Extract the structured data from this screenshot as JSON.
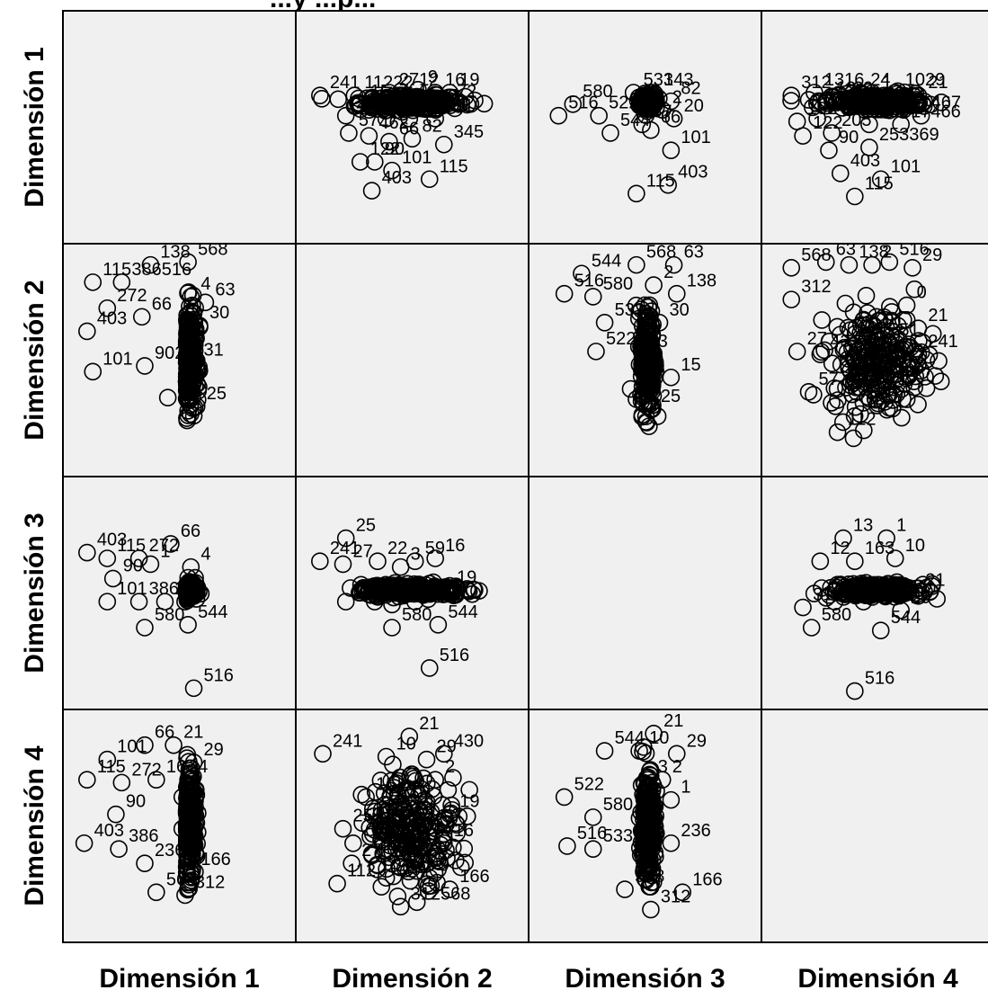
{
  "title_fragment": "...y ...p...",
  "chart_data": {
    "type": "scatter",
    "subtype": "scatterplot-matrix",
    "variables": [
      "Dimensión 1",
      "Dimensión 2",
      "Dimensión 3",
      "Dimensión 4"
    ],
    "panel_background": "#f0f0f0",
    "diagonal": "empty",
    "marker": "open-circle",
    "grid": false,
    "legend": "none",
    "panels": [
      {
        "row": 0,
        "col": 1,
        "label_points": [
          {
            "id": "241",
            "x": -3.2,
            "y": 1.1
          },
          {
            "id": "11222",
            "x": -2.0,
            "y": 1.1
          },
          {
            "id": "2712",
            "x": -0.8,
            "y": 1.2
          },
          {
            "id": "9",
            "x": 0.2,
            "y": 1.3
          },
          {
            "id": "16",
            "x": 0.8,
            "y": 1.2
          },
          {
            "id": "19",
            "x": 1.3,
            "y": 1.2
          },
          {
            "id": "15",
            "x": -1.8,
            "y": 0.8
          },
          {
            "id": "4",
            "x": -0.2,
            "y": 0.8
          },
          {
            "id": "72",
            "x": 1.2,
            "y": 0.8
          },
          {
            "id": "25",
            "x": -2.3,
            "y": 0.4
          },
          {
            "id": "3",
            "x": -0.9,
            "y": 0.3
          },
          {
            "id": "20",
            "x": -0.1,
            "y": 0.3
          },
          {
            "id": "411",
            "x": 0.8,
            "y": 0.3
          },
          {
            "id": "57",
            "x": -2.2,
            "y": -0.2
          },
          {
            "id": "462",
            "x": -1.5,
            "y": -0.3
          },
          {
            "id": "66",
            "x": -0.8,
            "y": -0.5
          },
          {
            "id": "82",
            "x": 0.0,
            "y": -0.4
          },
          {
            "id": "345",
            "x": 1.1,
            "y": -0.6
          },
          {
            "id": "122",
            "x": -1.8,
            "y": -1.2
          },
          {
            "id": "90",
            "x": -1.3,
            "y": -1.2
          },
          {
            "id": "101",
            "x": -0.7,
            "y": -1.5
          },
          {
            "id": "115",
            "x": 0.6,
            "y": -1.8
          },
          {
            "id": "403",
            "x": -1.4,
            "y": -2.2
          }
        ]
      },
      {
        "row": 0,
        "col": 2,
        "label_points": [
          {
            "id": "533",
            "x": -0.4,
            "y": 1.2
          },
          {
            "id": "143",
            "x": 0.3,
            "y": 1.2
          },
          {
            "id": "82",
            "x": 0.9,
            "y": 0.9
          },
          {
            "id": "580",
            "x": -2.5,
            "y": 0.8
          },
          {
            "id": "516",
            "x": -3.0,
            "y": 0.4
          },
          {
            "id": "522",
            "x": -1.6,
            "y": 0.4
          },
          {
            "id": "2",
            "x": 0.6,
            "y": 0.6
          },
          {
            "id": "57",
            "x": -0.1,
            "y": 0.1
          },
          {
            "id": "20",
            "x": 1.0,
            "y": 0.3
          },
          {
            "id": "544",
            "x": -1.2,
            "y": -0.2
          },
          {
            "id": "66",
            "x": 0.2,
            "y": -0.1
          },
          {
            "id": "101",
            "x": 0.9,
            "y": -0.8
          },
          {
            "id": "403",
            "x": 0.8,
            "y": -2.0
          },
          {
            "id": "115",
            "x": -0.3,
            "y": -2.3
          }
        ]
      },
      {
        "row": 0,
        "col": 3,
        "label_points": [
          {
            "id": "312",
            "x": -3.0,
            "y": 1.1
          },
          {
            "id": "1316",
            "x": -2.2,
            "y": 1.2
          },
          {
            "id": "12",
            "x": -1.8,
            "y": 0.9
          },
          {
            "id": "39",
            "x": -1.2,
            "y": 0.9
          },
          {
            "id": "24",
            "x": -0.6,
            "y": 1.2
          },
          {
            "id": "1",
            "x": -0.2,
            "y": 1.1
          },
          {
            "id": "1029",
            "x": 0.6,
            "y": 1.2
          },
          {
            "id": "21",
            "x": 1.4,
            "y": 1.1
          },
          {
            "id": "2",
            "x": 0.9,
            "y": 0.7
          },
          {
            "id": "467",
            "x": 1.5,
            "y": 0.4
          },
          {
            "id": "132",
            "x": -2.8,
            "y": 0.2
          },
          {
            "id": "57",
            "x": -2.1,
            "y": 0.3
          },
          {
            "id": "135",
            "x": -0.3,
            "y": 0.1
          },
          {
            "id": "17466",
            "x": 0.8,
            "y": 0.1
          },
          {
            "id": "122",
            "x": -2.6,
            "y": -0.3
          },
          {
            "id": "205",
            "x": -1.6,
            "y": -0.2
          },
          {
            "id": "90",
            "x": -1.7,
            "y": -0.8
          },
          {
            "id": "253369",
            "x": -0.3,
            "y": -0.7
          },
          {
            "id": "403",
            "x": -1.3,
            "y": -1.6
          },
          {
            "id": "101",
            "x": 0.1,
            "y": -1.8
          },
          {
            "id": "115",
            "x": -0.8,
            "y": -2.4
          }
        ]
      },
      {
        "row": 1,
        "col": 0,
        "label_points": [
          {
            "id": "138",
            "x": -1.0,
            "y": 3.3
          },
          {
            "id": "568",
            "x": 0.3,
            "y": 3.4
          },
          {
            "id": "115",
            "x": -3.0,
            "y": 2.7
          },
          {
            "id": "386516",
            "x": -2.0,
            "y": 2.7
          },
          {
            "id": "4",
            "x": 0.4,
            "y": 2.2
          },
          {
            "id": "63",
            "x": 0.9,
            "y": 2.0
          },
          {
            "id": "272",
            "x": -2.5,
            "y": 1.8
          },
          {
            "id": "66",
            "x": -1.3,
            "y": 1.5
          },
          {
            "id": "403",
            "x": -3.2,
            "y": 1.0
          },
          {
            "id": "30",
            "x": 0.7,
            "y": 1.2
          },
          {
            "id": "101",
            "x": -3.0,
            "y": -0.4
          },
          {
            "id": "9027",
            "x": -1.2,
            "y": -0.2
          },
          {
            "id": "31",
            "x": 0.5,
            "y": -0.1
          },
          {
            "id": "15",
            "x": -0.4,
            "y": -1.3
          },
          {
            "id": "25",
            "x": 0.6,
            "y": -1.6
          }
        ]
      },
      {
        "row": 1,
        "col": 2,
        "label_points": [
          {
            "id": "568",
            "x": -0.3,
            "y": 3.3
          },
          {
            "id": "63",
            "x": 1.0,
            "y": 3.3
          },
          {
            "id": "544",
            "x": -2.2,
            "y": 3.0
          },
          {
            "id": "516",
            "x": -2.8,
            "y": 2.3
          },
          {
            "id": "580",
            "x": -1.8,
            "y": 2.2
          },
          {
            "id": "2",
            "x": 0.3,
            "y": 2.6
          },
          {
            "id": "138",
            "x": 1.1,
            "y": 2.3
          },
          {
            "id": "533",
            "x": -1.4,
            "y": 1.3
          },
          {
            "id": "30",
            "x": 0.5,
            "y": 1.3
          },
          {
            "id": "522",
            "x": -1.7,
            "y": 0.3
          },
          {
            "id": "3",
            "x": 0.1,
            "y": 0.2
          },
          {
            "id": "15",
            "x": 0.9,
            "y": -0.6
          },
          {
            "id": "27",
            "x": -0.5,
            "y": -1.0
          },
          {
            "id": "25",
            "x": 0.2,
            "y": -1.7
          }
        ]
      },
      {
        "row": 1,
        "col": 3,
        "label_points": [
          {
            "id": "568",
            "x": -3.0,
            "y": 3.2
          },
          {
            "id": "63",
            "x": -1.8,
            "y": 3.4
          },
          {
            "id": "138",
            "x": -1.0,
            "y": 3.3
          },
          {
            "id": "2",
            "x": -0.2,
            "y": 3.3
          },
          {
            "id": "516",
            "x": 0.4,
            "y": 3.4
          },
          {
            "id": "29",
            "x": 1.2,
            "y": 3.2
          },
          {
            "id": "312",
            "x": -3.0,
            "y": 2.1
          },
          {
            "id": "0",
            "x": 1.0,
            "y": 1.9
          },
          {
            "id": "21",
            "x": 1.4,
            "y": 1.1
          },
          {
            "id": "27",
            "x": -2.8,
            "y": 0.3
          },
          {
            "id": "43",
            "x": -2.0,
            "y": 0.2
          },
          {
            "id": "51",
            "x": 0.4,
            "y": 0.6
          },
          {
            "id": "241",
            "x": 1.4,
            "y": 0.2
          },
          {
            "id": "57",
            "x": -2.4,
            "y": -1.1
          },
          {
            "id": "25",
            "x": -1.4,
            "y": -1.0
          },
          {
            "id": "87",
            "x": 0.0,
            "y": -1.5
          },
          {
            "id": "112",
            "x": -1.4,
            "y": -2.5
          }
        ]
      },
      {
        "row": 2,
        "col": 0,
        "label_points": [
          {
            "id": "403",
            "x": -3.2,
            "y": 1.4
          },
          {
            "id": "115",
            "x": -2.5,
            "y": 1.2
          },
          {
            "id": "272",
            "x": -1.4,
            "y": 1.2
          },
          {
            "id": "1",
            "x": -1.0,
            "y": 1.0
          },
          {
            "id": "66",
            "x": -0.3,
            "y": 1.7
          },
          {
            "id": "4",
            "x": 0.4,
            "y": 0.9
          },
          {
            "id": "90",
            "x": -2.3,
            "y": 0.5
          },
          {
            "id": "101",
            "x": -2.5,
            "y": -0.3
          },
          {
            "id": "386",
            "x": -1.4,
            "y": -0.3
          },
          {
            "id": "2",
            "x": -0.5,
            "y": -0.3
          },
          {
            "id": "3",
            "x": 0.2,
            "y": -0.3
          },
          {
            "id": "580",
            "x": -1.2,
            "y": -1.2
          },
          {
            "id": "544",
            "x": 0.3,
            "y": -1.1
          },
          {
            "id": "516",
            "x": 0.5,
            "y": -3.3
          }
        ]
      },
      {
        "row": 2,
        "col": 1,
        "label_points": [
          {
            "id": "25",
            "x": -2.3,
            "y": 1.9
          },
          {
            "id": "241",
            "x": -3.2,
            "y": 1.1
          },
          {
            "id": "27",
            "x": -2.4,
            "y": 1.0
          },
          {
            "id": "22",
            "x": -1.2,
            "y": 1.1
          },
          {
            "id": "3",
            "x": -0.4,
            "y": 0.9
          },
          {
            "id": "59",
            "x": 0.1,
            "y": 1.1
          },
          {
            "id": "16",
            "x": 0.8,
            "y": 1.2
          },
          {
            "id": "19",
            "x": 1.2,
            "y": 0.1
          },
          {
            "id": "112",
            "x": -2.3,
            "y": -0.3
          },
          {
            "id": "15",
            "x": -1.3,
            "y": -0.3
          },
          {
            "id": "2",
            "x": -0.7,
            "y": -0.4
          },
          {
            "id": "4",
            "x": 0.1,
            "y": -0.3
          },
          {
            "id": "580",
            "x": -0.7,
            "y": -1.2
          },
          {
            "id": "544",
            "x": 0.9,
            "y": -1.1
          },
          {
            "id": "516",
            "x": 0.6,
            "y": -2.6
          }
        ]
      },
      {
        "row": 2,
        "col": 3,
        "label_points": [
          {
            "id": "13",
            "x": -1.2,
            "y": 1.9
          },
          {
            "id": "1",
            "x": 0.3,
            "y": 1.9
          },
          {
            "id": "12",
            "x": -2.0,
            "y": 1.1
          },
          {
            "id": "163",
            "x": -0.8,
            "y": 1.1
          },
          {
            "id": "10",
            "x": 0.6,
            "y": 1.2
          },
          {
            "id": "21",
            "x": 1.3,
            "y": 0.0
          },
          {
            "id": "312",
            "x": -2.6,
            "y": -0.5
          },
          {
            "id": "9",
            "x": -1.5,
            "y": -0.3
          },
          {
            "id": "42",
            "x": -0.5,
            "y": -0.3
          },
          {
            "id": "29",
            "x": 0.8,
            "y": -0.6
          },
          {
            "id": "580",
            "x": -2.3,
            "y": -1.2
          },
          {
            "id": "544",
            "x": 0.1,
            "y": -1.3
          },
          {
            "id": "516",
            "x": -0.8,
            "y": -3.4
          }
        ]
      },
      {
        "row": 3,
        "col": 0,
        "label_points": [
          {
            "id": "66",
            "x": -1.2,
            "y": 2.8
          },
          {
            "id": "21",
            "x": -0.2,
            "y": 2.8
          },
          {
            "id": "101",
            "x": -2.5,
            "y": 2.3
          },
          {
            "id": "29",
            "x": 0.5,
            "y": 2.2
          },
          {
            "id": "115",
            "x": -3.2,
            "y": 1.6
          },
          {
            "id": "272",
            "x": -2.0,
            "y": 1.5
          },
          {
            "id": "16",
            "x": -0.8,
            "y": 1.6
          },
          {
            "id": "4",
            "x": 0.3,
            "y": 1.6
          },
          {
            "id": "1",
            "x": 0.1,
            "y": 1.0
          },
          {
            "id": "90",
            "x": -2.2,
            "y": 0.4
          },
          {
            "id": "2",
            "x": 0.1,
            "y": -0.1
          },
          {
            "id": "403",
            "x": -3.3,
            "y": -0.6
          },
          {
            "id": "386",
            "x": -2.1,
            "y": -0.8
          },
          {
            "id": "236",
            "x": -1.2,
            "y": -1.3
          },
          {
            "id": "166",
            "x": 0.4,
            "y": -1.6
          },
          {
            "id": "568",
            "x": -0.8,
            "y": -2.3
          },
          {
            "id": "312",
            "x": 0.2,
            "y": -2.4
          }
        ]
      },
      {
        "row": 3,
        "col": 1,
        "label_points": [
          {
            "id": "21",
            "x": -0.1,
            "y": 3.1
          },
          {
            "id": "241",
            "x": -3.1,
            "y": 2.5
          },
          {
            "id": "10",
            "x": -0.9,
            "y": 2.4
          },
          {
            "id": "29",
            "x": 0.5,
            "y": 2.3
          },
          {
            "id": "430",
            "x": 1.1,
            "y": 2.5
          },
          {
            "id": "2",
            "x": 0.8,
            "y": 1.6
          },
          {
            "id": "15",
            "x": -1.6,
            "y": 1.0
          },
          {
            "id": "19",
            "x": 1.3,
            "y": 0.4
          },
          {
            "id": "25",
            "x": -2.4,
            "y": -0.1
          },
          {
            "id": "16",
            "x": 1.1,
            "y": -0.6
          },
          {
            "id": "27",
            "x": -2.1,
            "y": -1.3
          },
          {
            "id": "112",
            "x": -2.6,
            "y": -2.0
          },
          {
            "id": "236",
            "x": -0.9,
            "y": -1.8
          },
          {
            "id": "9",
            "x": 0.6,
            "y": -1.8
          },
          {
            "id": "166",
            "x": 1.3,
            "y": -2.2
          },
          {
            "id": "312568",
            "x": -0.4,
            "y": -2.8
          }
        ]
      },
      {
        "row": 3,
        "col": 2,
        "label_points": [
          {
            "id": "21",
            "x": 0.3,
            "y": 3.2
          },
          {
            "id": "544",
            "x": -1.4,
            "y": 2.6
          },
          {
            "id": "10",
            "x": -0.2,
            "y": 2.6
          },
          {
            "id": "29",
            "x": 1.1,
            "y": 2.5
          },
          {
            "id": "3",
            "x": 0.1,
            "y": 1.6
          },
          {
            "id": "2",
            "x": 0.6,
            "y": 1.6
          },
          {
            "id": "522",
            "x": -2.8,
            "y": 1.0
          },
          {
            "id": "1",
            "x": 0.9,
            "y": 0.9
          },
          {
            "id": "580",
            "x": -1.8,
            "y": 0.3
          },
          {
            "id": "236",
            "x": 0.9,
            "y": -0.6
          },
          {
            "id": "516",
            "x": -2.7,
            "y": -0.7
          },
          {
            "id": "533",
            "x": -1.8,
            "y": -0.8
          },
          {
            "id": "568",
            "x": -0.7,
            "y": -2.2
          },
          {
            "id": "166",
            "x": 1.3,
            "y": -2.3
          },
          {
            "id": "312",
            "x": 0.2,
            "y": -2.9
          }
        ]
      }
    ]
  }
}
